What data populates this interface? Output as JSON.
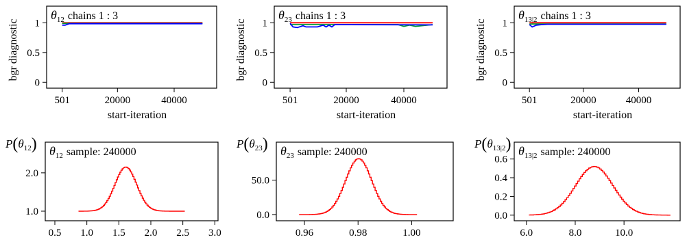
{
  "colors": {
    "red": "#ff0000",
    "blue": "#0000ff",
    "green": "#009933",
    "black": "#000000"
  },
  "chart_data": [
    {
      "type": "line",
      "title_symbol": "θ",
      "title_subscript": "12",
      "title_text": "chains 1 : 3",
      "xlabel": "start-iteration",
      "ylabel": "bgr diagnostic",
      "xlim": [
        -5000,
        55000
      ],
      "ylim": [
        -0.1,
        1.28
      ],
      "xticks": [
        {
          "value": 501,
          "label": "501"
        },
        {
          "value": 20000,
          "label": "20000"
        },
        {
          "value": 40000,
          "label": "40000"
        }
      ],
      "yticks": [
        {
          "value": 0,
          "label": "0"
        },
        {
          "value": 0.5,
          "label": "0.5"
        },
        {
          "value": 1,
          "label": "1"
        }
      ],
      "series": [
        {
          "color": "#ff0000",
          "x": [
            501,
            50000
          ],
          "y": [
            1.0,
            1.0
          ]
        },
        {
          "color": "#009933",
          "x": [
            501,
            2000,
            50000
          ],
          "y": [
            0.99,
            0.99,
            0.99
          ]
        },
        {
          "color": "#0000ff",
          "x": [
            501,
            1500,
            3000,
            50000
          ],
          "y": [
            0.96,
            0.96,
            0.985,
            0.985
          ]
        }
      ]
    },
    {
      "type": "line",
      "title_symbol": "θ",
      "title_subscript": "23",
      "title_text": "chains 1 : 3",
      "xlabel": "start-iteration",
      "ylabel": "bgr diagnostic",
      "xlim": [
        -5000,
        55000
      ],
      "ylim": [
        -0.1,
        1.28
      ],
      "xticks": [
        {
          "value": 501,
          "label": "501"
        },
        {
          "value": 20000,
          "label": "20000"
        },
        {
          "value": 40000,
          "label": "40000"
        }
      ],
      "yticks": [
        {
          "value": 0,
          "label": "0"
        },
        {
          "value": 0.5,
          "label": "0.5"
        },
        {
          "value": 1,
          "label": "1"
        }
      ],
      "series": [
        {
          "color": "#ff0000",
          "x": [
            501,
            50000
          ],
          "y": [
            1.0,
            1.0
          ]
        },
        {
          "color": "#009933",
          "x": [
            501,
            38000,
            40000,
            42000,
            44000,
            50000
          ],
          "y": [
            0.97,
            0.97,
            0.94,
            0.96,
            0.94,
            0.97
          ]
        },
        {
          "color": "#0000ff",
          "x": [
            501,
            1500,
            3000,
            5000,
            6000,
            10000,
            12000,
            13000,
            14000,
            15000,
            16000,
            50000
          ],
          "y": [
            0.99,
            0.93,
            0.92,
            0.95,
            0.93,
            0.93,
            0.96,
            0.93,
            0.96,
            0.93,
            0.97,
            0.965
          ]
        }
      ]
    },
    {
      "type": "line",
      "title_symbol": "θ",
      "title_subscript": "13|2",
      "title_text": "chains 1 : 3",
      "xlabel": "start-iteration",
      "ylabel": "bgr diagnostic",
      "xlim": [
        -5000,
        55000
      ],
      "ylim": [
        -0.1,
        1.28
      ],
      "xticks": [
        {
          "value": 501,
          "label": "501"
        },
        {
          "value": 20000,
          "label": "20000"
        },
        {
          "value": 40000,
          "label": "40000"
        }
      ],
      "yticks": [
        {
          "value": 0,
          "label": "0"
        },
        {
          "value": 0.5,
          "label": "0.5"
        },
        {
          "value": 1,
          "label": "1"
        }
      ],
      "series": [
        {
          "color": "#ff0000",
          "x": [
            501,
            50000
          ],
          "y": [
            1.0,
            1.0
          ]
        },
        {
          "color": "#009933",
          "x": [
            501,
            3000,
            50000
          ],
          "y": [
            0.98,
            0.98,
            0.98
          ]
        },
        {
          "color": "#0000ff",
          "x": [
            501,
            1500,
            3000,
            5000,
            7000,
            50000
          ],
          "y": [
            0.97,
            0.93,
            0.96,
            0.97,
            0.975,
            0.975
          ]
        }
      ]
    },
    {
      "type": "line",
      "ylabel_symbol": "θ",
      "ylabel_subscript": "12",
      "title_symbol": "θ",
      "title_subscript": "12",
      "title_text": "sample: 240000",
      "xlim": [
        0.35,
        3.05
      ],
      "ylim": [
        0.75,
        2.8
      ],
      "xticks": [
        {
          "value": 0.5,
          "label": "0.5"
        },
        {
          "value": 1.0,
          "label": "1.0"
        },
        {
          "value": 1.5,
          "label": "1.5"
        },
        {
          "value": 2.0,
          "label": "2.0"
        },
        {
          "value": 2.5,
          "label": "2.5"
        },
        {
          "value": 3.0,
          "label": "3.0"
        }
      ],
      "yticks": [
        {
          "value": 1.0,
          "label": "1.0"
        },
        {
          "value": 2.0,
          "label": "2.0"
        }
      ],
      "curve": {
        "color": "#ff0000",
        "x_start": 0.87,
        "x_end": 2.53,
        "mean": 1.6,
        "sd": 0.17,
        "baseline": 1.0,
        "peak": 2.15
      }
    },
    {
      "type": "line",
      "ylabel_symbol": "θ",
      "ylabel_subscript": "23",
      "title_symbol": "θ",
      "title_subscript": "23",
      "title_text": "sample: 240000",
      "xlim": [
        0.9495,
        1.0155
      ],
      "ylim": [
        -9,
        105
      ],
      "xticks": [
        {
          "value": 0.96,
          "label": "0.96"
        },
        {
          "value": 0.98,
          "label": "0.98"
        },
        {
          "value": 1.0,
          "label": "1.00"
        }
      ],
      "yticks": [
        {
          "value": 0,
          "label": "0.0"
        },
        {
          "value": 50,
          "label": "50.0"
        }
      ],
      "curve": {
        "color": "#ff0000",
        "x_start": 0.958,
        "x_end": 1.002,
        "mean": 0.98,
        "sd": 0.0049,
        "baseline": 0,
        "peak": 81
      }
    },
    {
      "type": "line",
      "ylabel_symbol": "θ",
      "ylabel_subscript": "13|2",
      "title_symbol": "θ",
      "title_subscript": "13|2",
      "title_text": "sample: 240000",
      "xlim": [
        5.5,
        12.3
      ],
      "ylim": [
        -0.06,
        0.78
      ],
      "xticks": [
        {
          "value": 6.0,
          "label": "6.0"
        },
        {
          "value": 8.0,
          "label": "8.0"
        },
        {
          "value": 10.0,
          "label": "10.0"
        }
      ],
      "yticks": [
        {
          "value": 0.0,
          "label": "0.0"
        },
        {
          "value": 0.2,
          "label": "0.2"
        },
        {
          "value": 0.4,
          "label": "0.4"
        },
        {
          "value": 0.6,
          "label": "0.6"
        }
      ],
      "curve": {
        "color": "#ff0000",
        "x_start": 6.1,
        "x_end": 11.9,
        "mean": 8.75,
        "sd": 0.77,
        "baseline": 0,
        "peak": 0.52
      }
    }
  ]
}
